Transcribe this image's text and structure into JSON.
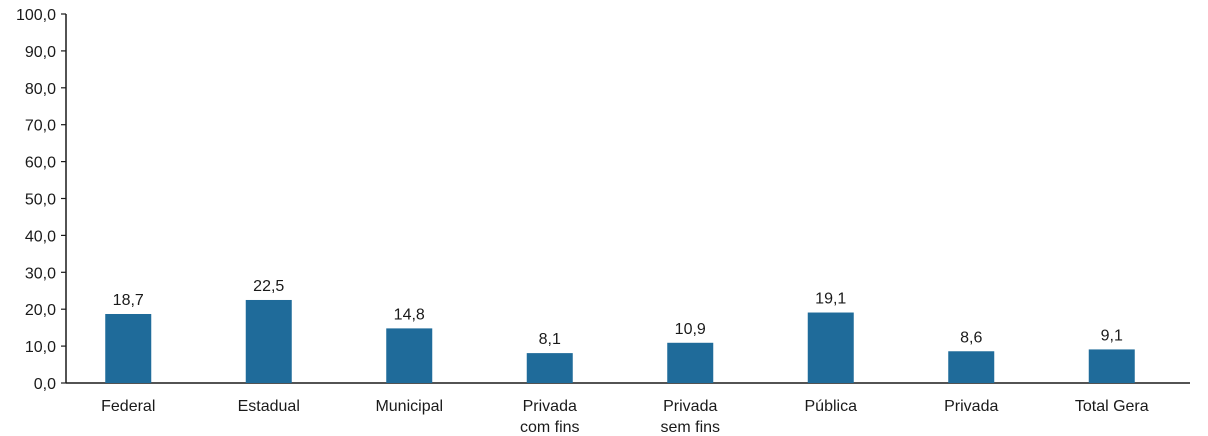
{
  "chart_data": {
    "type": "bar",
    "title": "",
    "xlabel": "",
    "ylabel": "",
    "ylim": [
      0,
      100
    ],
    "yticks": [
      "0,0",
      "10,0",
      "20,0",
      "30,0",
      "40,0",
      "50,0",
      "60,0",
      "70,0",
      "80,0",
      "90,0",
      "100,0"
    ],
    "categories": [
      [
        "Federal"
      ],
      [
        "Estadual"
      ],
      [
        "Municipal"
      ],
      [
        "Privada",
        "com fins"
      ],
      [
        "Privada",
        "sem fins"
      ],
      [
        "Pública"
      ],
      [
        "Privada"
      ],
      [
        "Total Gera"
      ]
    ],
    "values": [
      18.7,
      22.5,
      14.8,
      8.1,
      10.9,
      19.1,
      8.6,
      9.1
    ],
    "value_labels": [
      "18,7",
      "22,5",
      "14,8",
      "8,1",
      "10,9",
      "19,1",
      "8,6",
      "9,1"
    ],
    "bar_color": "#1f6b9a",
    "axis_color": "#1a1a1a",
    "grid": false,
    "legend": "none"
  }
}
